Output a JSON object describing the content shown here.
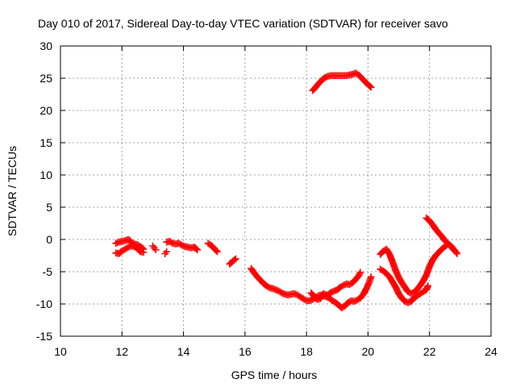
{
  "chart_data": {
    "type": "scatter",
    "title": "Day 010 of 2017, Sidereal Day-to-day VTEC variation (SDTVAR) for receiver savo",
    "xlabel": "GPS time / hours",
    "ylabel": "SDTVAR / TECUs",
    "xlim": [
      10,
      24
    ],
    "ylim": [
      -15,
      30
    ],
    "xticks": [
      10,
      12,
      14,
      16,
      18,
      20,
      22,
      24
    ],
    "yticks": [
      -15,
      -10,
      -5,
      0,
      5,
      10,
      15,
      20,
      25,
      30
    ],
    "grid": true,
    "marker": "+",
    "color": "#ff0000",
    "series": [
      {
        "name": "savo SDTVAR",
        "segments": [
          [
            [
              11.8,
              -0.6
            ],
            [
              11.9,
              -0.4
            ],
            [
              12.0,
              -0.3
            ],
            [
              12.1,
              -0.2
            ],
            [
              12.2,
              0.0
            ],
            [
              12.25,
              -0.1
            ],
            [
              12.3,
              -0.5
            ],
            [
              12.4,
              -0.7
            ],
            [
              12.5,
              -0.8
            ],
            [
              12.6,
              -1.1
            ],
            [
              12.7,
              -1.5
            ]
          ],
          [
            [
              11.8,
              -2.1
            ],
            [
              11.9,
              -2.2
            ],
            [
              12.0,
              -1.8
            ],
            [
              12.1,
              -1.5
            ],
            [
              12.2,
              -1.2
            ],
            [
              12.3,
              -1.0
            ],
            [
              12.4,
              -1.1
            ],
            [
              12.5,
              -1.4
            ],
            [
              12.6,
              -1.9
            ],
            [
              12.7,
              -2.0
            ]
          ],
          [
            [
              13.0,
              -1.0
            ],
            [
              13.05,
              -1.3
            ],
            [
              13.1,
              -1.6
            ]
          ],
          [
            [
              13.4,
              -2.2
            ],
            [
              13.45,
              -1.9
            ]
          ],
          [
            [
              13.45,
              -0.4
            ],
            [
              13.55,
              -0.3
            ],
            [
              13.65,
              -0.6
            ],
            [
              13.75,
              -0.7
            ],
            [
              13.85,
              -0.6
            ],
            [
              13.95,
              -0.9
            ],
            [
              14.05,
              -1.1
            ],
            [
              14.15,
              -1.2
            ],
            [
              14.25,
              -1.3
            ],
            [
              14.35,
              -1.2
            ],
            [
              14.45,
              -1.6
            ]
          ],
          [
            [
              14.8,
              -0.6
            ],
            [
              14.9,
              -0.9
            ],
            [
              15.0,
              -1.4
            ],
            [
              15.1,
              -1.9
            ]
          ],
          [
            [
              15.5,
              -3.8
            ],
            [
              15.6,
              -3.4
            ],
            [
              15.7,
              -3.0
            ]
          ],
          [
            [
              16.2,
              -4.5
            ],
            [
              16.3,
              -5.2
            ],
            [
              16.4,
              -5.8
            ],
            [
              16.5,
              -6.3
            ],
            [
              16.6,
              -6.8
            ],
            [
              16.7,
              -7.2
            ],
            [
              16.8,
              -7.5
            ],
            [
              16.9,
              -7.6
            ],
            [
              17.0,
              -7.8
            ],
            [
              17.1,
              -8.0
            ],
            [
              17.2,
              -8.3
            ],
            [
              17.3,
              -8.5
            ],
            [
              17.4,
              -8.6
            ],
            [
              17.5,
              -8.5
            ],
            [
              17.6,
              -8.4
            ],
            [
              17.7,
              -8.6
            ],
            [
              17.8,
              -8.9
            ],
            [
              17.9,
              -9.2
            ],
            [
              18.0,
              -9.5
            ],
            [
              18.1,
              -9.5
            ],
            [
              18.2,
              -9.3
            ],
            [
              18.3,
              -9.0
            ],
            [
              18.4,
              -8.7
            ],
            [
              18.5,
              -8.6
            ],
            [
              18.6,
              -8.8
            ],
            [
              18.7,
              -9.0
            ]
          ],
          [
            [
              18.15,
              -8.3
            ],
            [
              18.25,
              -8.8
            ],
            [
              18.35,
              -9.3
            ],
            [
              18.45,
              -9.2
            ],
            [
              18.55,
              -8.4
            ],
            [
              18.65,
              -8.6
            ],
            [
              18.75,
              -9.1
            ],
            [
              18.85,
              -9.5
            ],
            [
              18.95,
              -9.8
            ],
            [
              19.05,
              -10.2
            ],
            [
              19.15,
              -10.6
            ],
            [
              19.25,
              -10.3
            ],
            [
              19.35,
              -9.8
            ],
            [
              19.45,
              -9.5
            ],
            [
              19.55,
              -9.6
            ],
            [
              19.65,
              -9.4
            ],
            [
              19.75,
              -9.1
            ],
            [
              19.85,
              -8.5
            ],
            [
              19.95,
              -7.6
            ],
            [
              20.05,
              -6.5
            ],
            [
              20.1,
              -5.8
            ]
          ],
          [
            [
              18.7,
              -8.6
            ],
            [
              18.8,
              -8.2
            ],
            [
              18.9,
              -8.0
            ],
            [
              19.0,
              -7.8
            ],
            [
              19.1,
              -7.4
            ],
            [
              19.2,
              -7.1
            ],
            [
              19.3,
              -6.9
            ],
            [
              19.4,
              -7.0
            ],
            [
              19.5,
              -6.7
            ],
            [
              19.6,
              -6.2
            ],
            [
              19.7,
              -5.6
            ],
            [
              19.75,
              -5.1
            ]
          ],
          [
            [
              18.2,
              23.1
            ],
            [
              18.3,
              23.6
            ],
            [
              18.4,
              24.2
            ],
            [
              18.5,
              24.7
            ],
            [
              18.6,
              25.1
            ],
            [
              18.7,
              25.3
            ],
            [
              18.8,
              25.4
            ],
            [
              18.9,
              25.4
            ],
            [
              19.0,
              25.4
            ],
            [
              19.1,
              25.4
            ],
            [
              19.2,
              25.4
            ],
            [
              19.3,
              25.4
            ],
            [
              19.4,
              25.5
            ],
            [
              19.5,
              25.6
            ],
            [
              19.6,
              25.8
            ],
            [
              19.7,
              25.5
            ],
            [
              19.8,
              25.0
            ],
            [
              19.9,
              24.5
            ],
            [
              20.0,
              24.0
            ],
            [
              20.1,
              23.6
            ]
          ],
          [
            [
              20.4,
              -4.6
            ],
            [
              20.5,
              -4.9
            ],
            [
              20.6,
              -5.3
            ],
            [
              20.7,
              -5.8
            ],
            [
              20.8,
              -6.6
            ],
            [
              20.9,
              -7.4
            ],
            [
              21.0,
              -8.4
            ],
            [
              21.1,
              -9.1
            ],
            [
              21.2,
              -9.6
            ],
            [
              21.3,
              -9.8
            ],
            [
              21.4,
              -9.6
            ],
            [
              21.5,
              -9.1
            ],
            [
              21.6,
              -8.7
            ],
            [
              21.7,
              -8.4
            ],
            [
              21.8,
              -8.1
            ],
            [
              21.9,
              -7.8
            ],
            [
              21.95,
              -7.2
            ]
          ],
          [
            [
              20.4,
              -2.3
            ],
            [
              20.5,
              -1.8
            ],
            [
              20.6,
              -1.5
            ],
            [
              20.7,
              -2.3
            ],
            [
              20.8,
              -3.5
            ],
            [
              20.9,
              -4.8
            ],
            [
              21.0,
              -5.9
            ],
            [
              21.1,
              -6.7
            ],
            [
              21.2,
              -7.4
            ],
            [
              21.3,
              -8.1
            ],
            [
              21.4,
              -8.4
            ],
            [
              21.5,
              -8.2
            ],
            [
              21.6,
              -7.7
            ],
            [
              21.7,
              -7.1
            ],
            [
              21.8,
              -6.4
            ],
            [
              21.9,
              -5.5
            ],
            [
              22.0,
              -4.2
            ],
            [
              22.1,
              -3.2
            ],
            [
              22.2,
              -2.5
            ],
            [
              22.3,
              -2.0
            ],
            [
              22.4,
              -1.5
            ],
            [
              22.5,
              -1.1
            ],
            [
              22.6,
              -0.7
            ],
            [
              22.7,
              -1.0
            ],
            [
              22.8,
              -1.6
            ],
            [
              22.9,
              -2.2
            ]
          ],
          [
            [
              21.9,
              3.3
            ],
            [
              22.0,
              2.9
            ],
            [
              22.1,
              2.3
            ],
            [
              22.2,
              1.6
            ],
            [
              22.3,
              1.0
            ],
            [
              22.4,
              0.5
            ],
            [
              22.5,
              -0.2
            ],
            [
              22.6,
              -0.6
            ],
            [
              22.7,
              -1.1
            ],
            [
              22.8,
              -1.7
            ]
          ]
        ]
      }
    ]
  }
}
